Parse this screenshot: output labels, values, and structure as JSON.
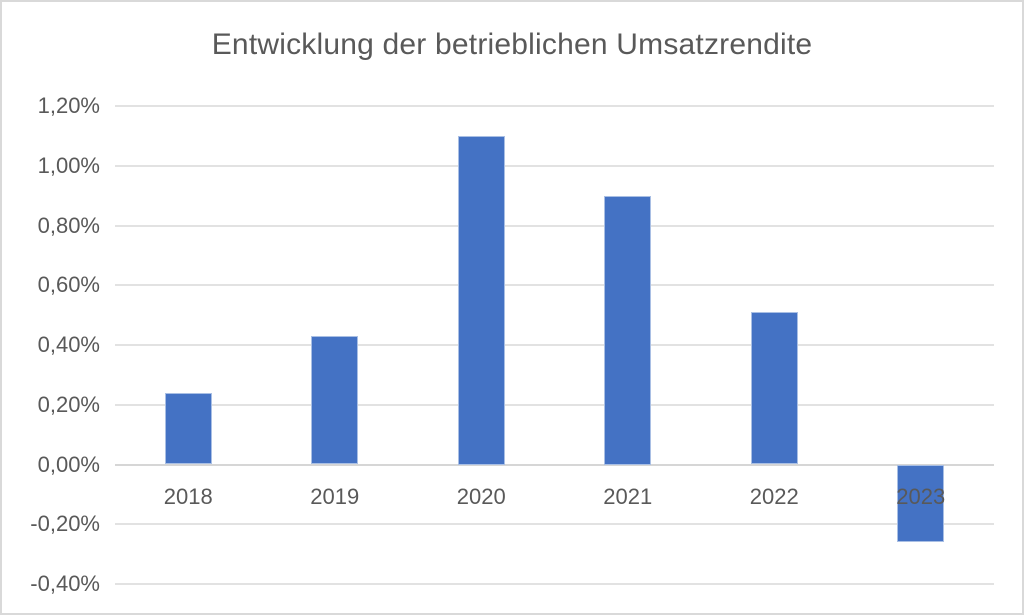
{
  "title": "Entwicklung der betrieblichen Umsatzrendite",
  "chart_data": {
    "type": "bar",
    "title": "Entwicklung der betrieblichen Umsatzrendite",
    "categories": [
      "2018",
      "2019",
      "2020",
      "2021",
      "2022",
      "2023"
    ],
    "values": [
      0.24,
      0.43,
      1.1,
      0.9,
      0.51,
      -0.26
    ],
    "value_unit": "%",
    "xlabel": "",
    "ylabel": "",
    "ylim": [
      -0.4,
      1.2
    ],
    "ytick_step": 0.2,
    "yticks": [
      {
        "value": 1.2,
        "label": "1,20%"
      },
      {
        "value": 1.0,
        "label": "1,00%"
      },
      {
        "value": 0.8,
        "label": "0,80%"
      },
      {
        "value": 0.6,
        "label": "0,60%"
      },
      {
        "value": 0.4,
        "label": "0,40%"
      },
      {
        "value": 0.2,
        "label": "0,20%"
      },
      {
        "value": 0.0,
        "label": "0,00%"
      },
      {
        "value": -0.2,
        "label": "-0,20%"
      },
      {
        "value": -0.4,
        "label": "-0,40%"
      }
    ],
    "grid": true,
    "legend": false,
    "colors": {
      "bar": "#4472C4",
      "gridline": "#e2e2e2",
      "axis_line": "#d6d6d6",
      "text": "#595959",
      "frame_border": "#d9d9d9"
    }
  }
}
